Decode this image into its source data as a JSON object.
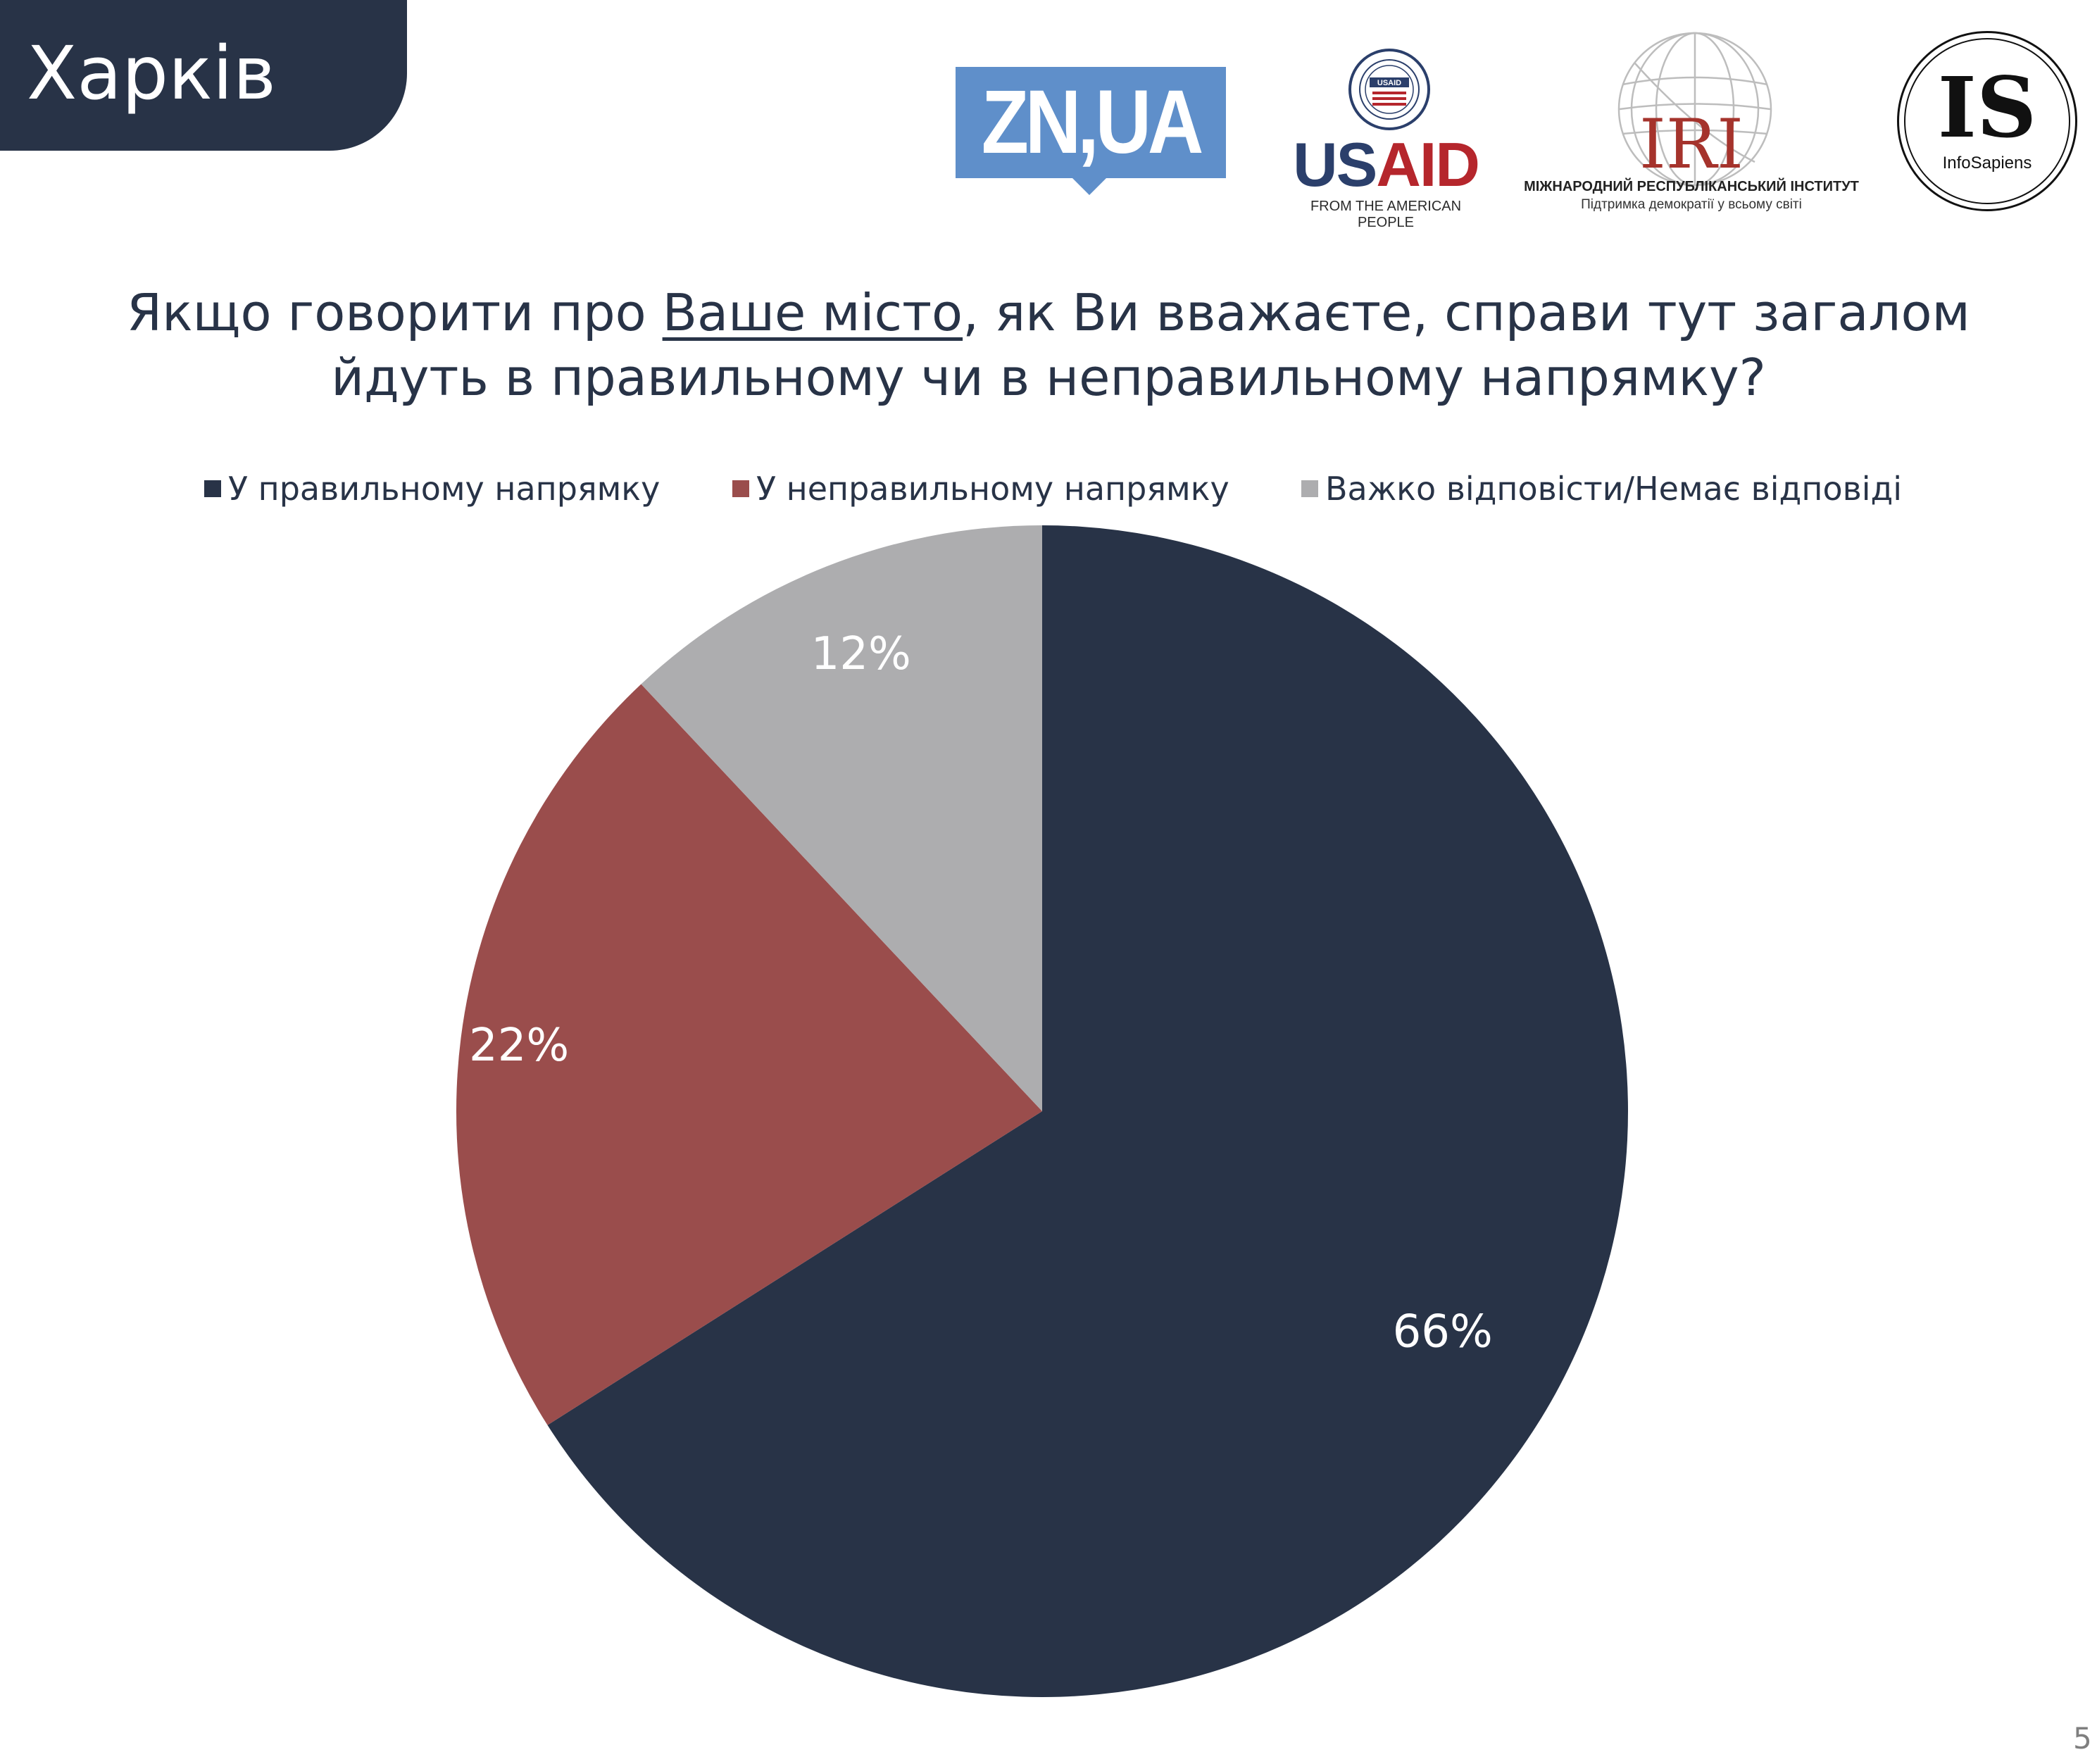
{
  "header": {
    "city": "Харків"
  },
  "logos": {
    "zn": "ZN,UA",
    "usaid": {
      "seal_text": "USAID",
      "word_us": "US",
      "word_aid": "AID",
      "tagline": "FROM THE AMERICAN PEOPLE"
    },
    "iri": {
      "letters": "IRI",
      "line1": "МІЖНАРОДНИЙ РЕСПУБЛІКАНСЬКИЙ ІНСТИТУТ",
      "line2": "Підтримка демократії у всьому світі"
    },
    "infosapiens": {
      "letters": "IS",
      "name": "InfoSapiens"
    }
  },
  "question": {
    "part1": "Якщо говорити про ",
    "underlined": "Ваше місто",
    "part2": ", як Ви вважаєте, справи тут загалом",
    "line2": "йдуть в правильному чи в неправильному напрямку?"
  },
  "chart_data": {
    "type": "pie",
    "categories": [
      "У правильному напрямку",
      "У неправильному напрямку",
      "Важко відповісти/Немає відповіді"
    ],
    "values": [
      66,
      22,
      12
    ],
    "labels": [
      "66%",
      "22%",
      "12%"
    ],
    "colors": [
      "#283347",
      "#9a4d4c",
      "#adadaf"
    ],
    "start_angle": "12 o'clock",
    "direction": "clockwise",
    "legend_position": "top"
  },
  "page_number": "5"
}
